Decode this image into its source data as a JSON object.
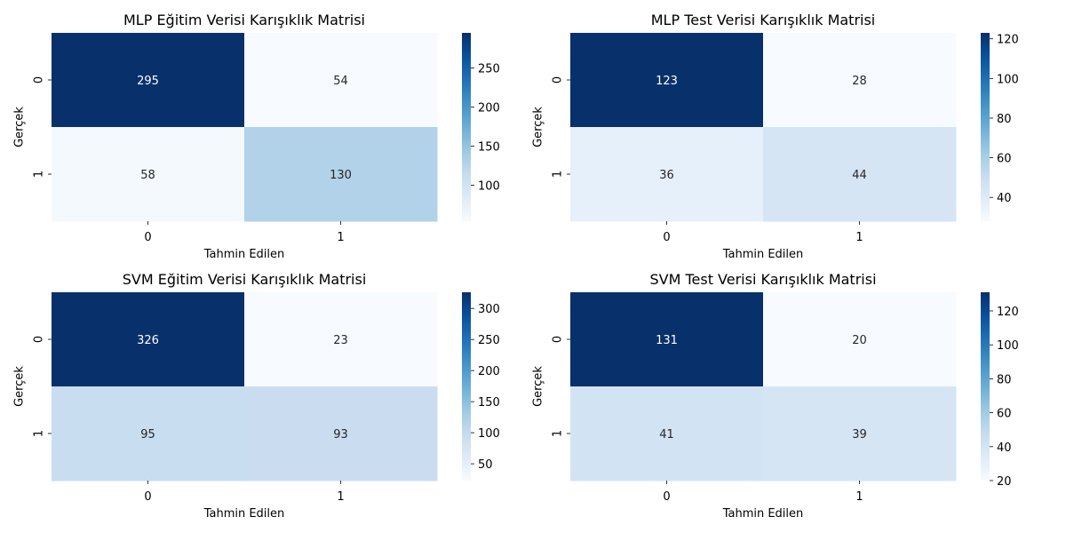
{
  "chart_data": [
    {
      "type": "heatmap",
      "title": "MLP Eğitim Verisi Karışıklık Matrisi",
      "xlabel": "Tahmin Edilen",
      "ylabel": "Gerçek",
      "x_categories": [
        "0",
        "1"
      ],
      "y_categories": [
        "0",
        "1"
      ],
      "values": [
        [
          295,
          54
        ],
        [
          58,
          130
        ]
      ],
      "colormap": "Blues",
      "colorbar": {
        "range": [
          54,
          295
        ],
        "ticks": [
          100,
          150,
          200,
          250
        ]
      }
    },
    {
      "type": "heatmap",
      "title": "MLP Test Verisi Karışıklık Matrisi",
      "xlabel": "Tahmin Edilen",
      "ylabel": "Gerçek",
      "x_categories": [
        "0",
        "1"
      ],
      "y_categories": [
        "0",
        "1"
      ],
      "values": [
        [
          123,
          28
        ],
        [
          36,
          44
        ]
      ],
      "colormap": "Blues",
      "colorbar": {
        "range": [
          28,
          123
        ],
        "ticks": [
          40,
          60,
          80,
          100,
          120
        ]
      }
    },
    {
      "type": "heatmap",
      "title": "SVM Eğitim Verisi Karışıklık Matrisi",
      "xlabel": "Tahmin Edilen",
      "ylabel": "Gerçek",
      "x_categories": [
        "0",
        "1"
      ],
      "y_categories": [
        "0",
        "1"
      ],
      "values": [
        [
          326,
          23
        ],
        [
          95,
          93
        ]
      ],
      "colormap": "Blues",
      "colorbar": {
        "range": [
          23,
          326
        ],
        "ticks": [
          50,
          100,
          150,
          200,
          250,
          300
        ]
      }
    },
    {
      "type": "heatmap",
      "title": "SVM Test Verisi Karışıklık Matrisi",
      "xlabel": "Tahmin Edilen",
      "ylabel": "Gerçek",
      "x_categories": [
        "0",
        "1"
      ],
      "y_categories": [
        "0",
        "1"
      ],
      "values": [
        [
          131,
          20
        ],
        [
          41,
          39
        ]
      ],
      "colormap": "Blues",
      "colorbar": {
        "range": [
          20,
          131
        ],
        "ticks": [
          20,
          40,
          60,
          80,
          100,
          120
        ]
      }
    }
  ]
}
